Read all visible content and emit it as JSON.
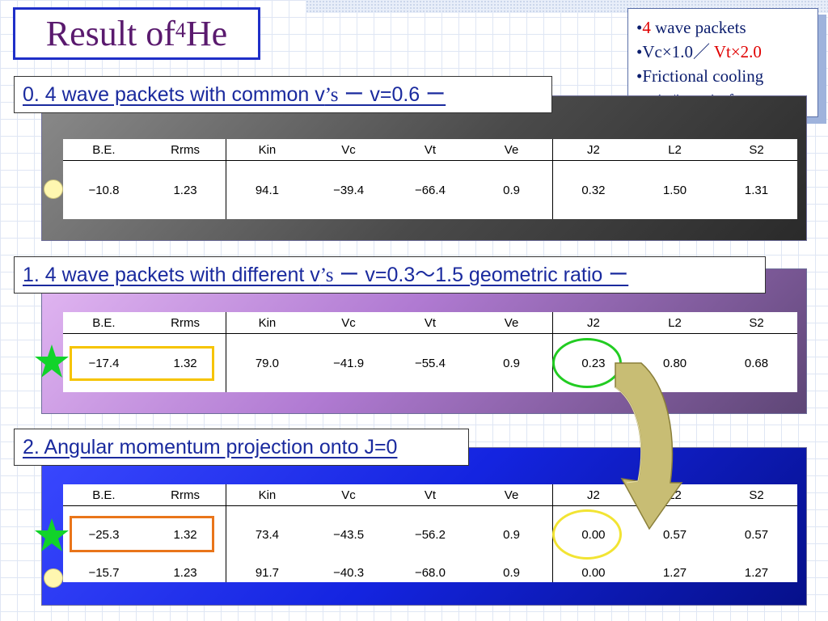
{
  "title": {
    "main": "Result of ",
    "sup": "4",
    "element": "He"
  },
  "info": {
    "line1_num": "4",
    "line1_rest": " wave packets",
    "line2_a": "Vc×1.0／",
    "line2_b": "Vt×2.0",
    "line3": "Frictional cooling",
    "line4": "spin/isospin free"
  },
  "headings": {
    "h0_a": "0. 4 wave packets with common v",
    "h0_b": "’s",
    "h0_c": " ー v=0.6 ー",
    "h1_a": "1. 4 wave packets with different v",
    "h1_b": "’s",
    "h1_c": " ー v=0.3〜1.5 geometric ratio ー",
    "h2": "2. Angular momentum projection onto J=0"
  },
  "columns": [
    "B.E.",
    "Rrms",
    "Kin",
    "Vc",
    "Vt",
    "Ve",
    "J2",
    "L2",
    "S2"
  ],
  "tables": {
    "t0": {
      "r1": [
        "−10.8",
        "1.23",
        "94.1",
        "−39.4",
        "−66.4",
        "0.9",
        "0.32",
        "1.50",
        "1.31"
      ]
    },
    "t1": {
      "r1": [
        "−17.4",
        "1.32",
        "79.0",
        "−41.9",
        "−55.4",
        "0.9",
        "0.23",
        "0.80",
        "0.68"
      ]
    },
    "t2": {
      "r1": [
        "−25.3",
        "1.32",
        "73.4",
        "−43.5",
        "−56.2",
        "0.9",
        "0.00",
        "0.57",
        "0.57"
      ],
      "r2": [
        "−15.7",
        "1.23",
        "91.7",
        "−40.3",
        "−68.0",
        "0.9",
        "0.00",
        "1.27",
        "1.27"
      ]
    }
  },
  "colors": {
    "title_text": "#5a1a6e",
    "heading_text": "#1a2a9e",
    "marker_star": "#11d32a",
    "marker_circle": "#fff7b0",
    "highlight_yellow": "#f6c400",
    "highlight_orange": "#e9751a",
    "highlight_green": "#22cc22"
  },
  "icons": [
    "green-star-icon",
    "yellow-circle-icon",
    "curved-arrow-icon"
  ]
}
